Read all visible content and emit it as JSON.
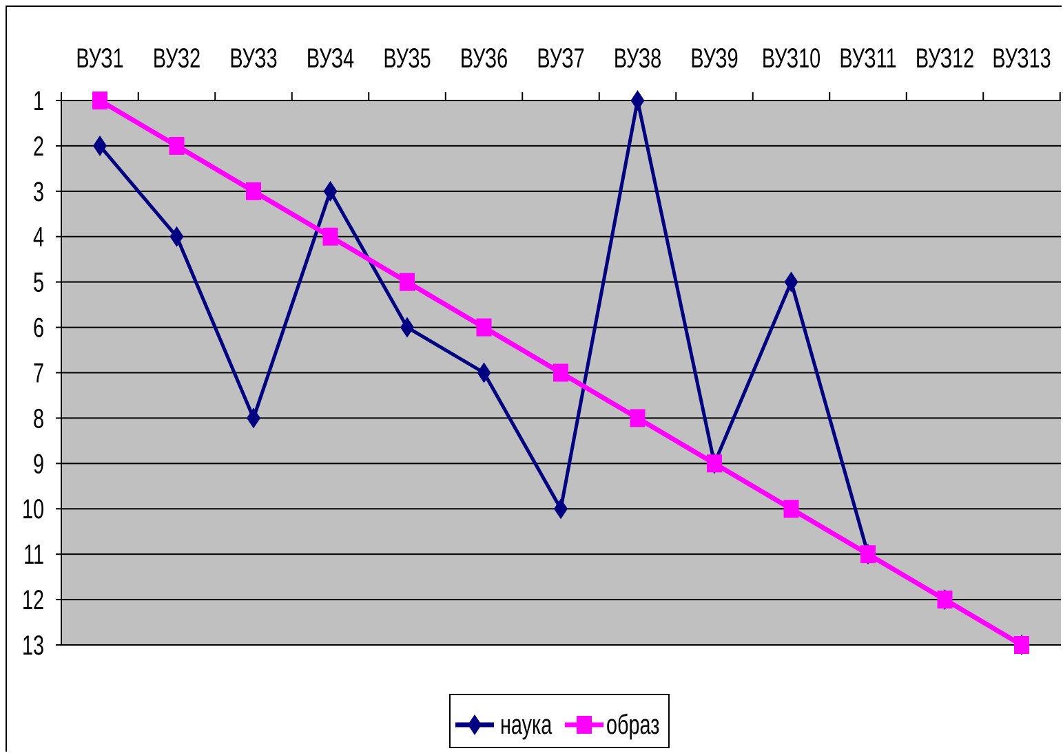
{
  "chart_data": {
    "type": "line",
    "categories": [
      "ВУЗ1",
      "ВУЗ2",
      "ВУЗ3",
      "ВУЗ4",
      "ВУЗ5",
      "ВУЗ6",
      "ВУЗ7",
      "ВУЗ8",
      "ВУЗ9",
      "ВУЗ10",
      "ВУЗ11",
      "ВУЗ12",
      "ВУЗ13"
    ],
    "series": [
      {
        "name": "наука",
        "values": [
          2,
          4,
          8,
          3,
          6,
          7,
          10,
          1,
          9,
          5,
          11,
          12,
          13
        ],
        "color": "#000080",
        "marker": "diamond"
      },
      {
        "name": "образ",
        "values": [
          1,
          2,
          3,
          4,
          5,
          6,
          7,
          8,
          9,
          10,
          11,
          12,
          13
        ],
        "color": "#FF00FF",
        "marker": "square"
      }
    ],
    "title": "",
    "xlabel": "",
    "ylabel": "",
    "ylim": [
      1,
      13
    ],
    "y_reversed": true,
    "y_ticks": [
      1,
      2,
      3,
      4,
      5,
      6,
      7,
      8,
      9,
      10,
      11,
      12,
      13
    ],
    "x_axis_position": "top",
    "grid": true,
    "plot_background": "#C0C0C0",
    "legend_position": "bottom-center"
  }
}
